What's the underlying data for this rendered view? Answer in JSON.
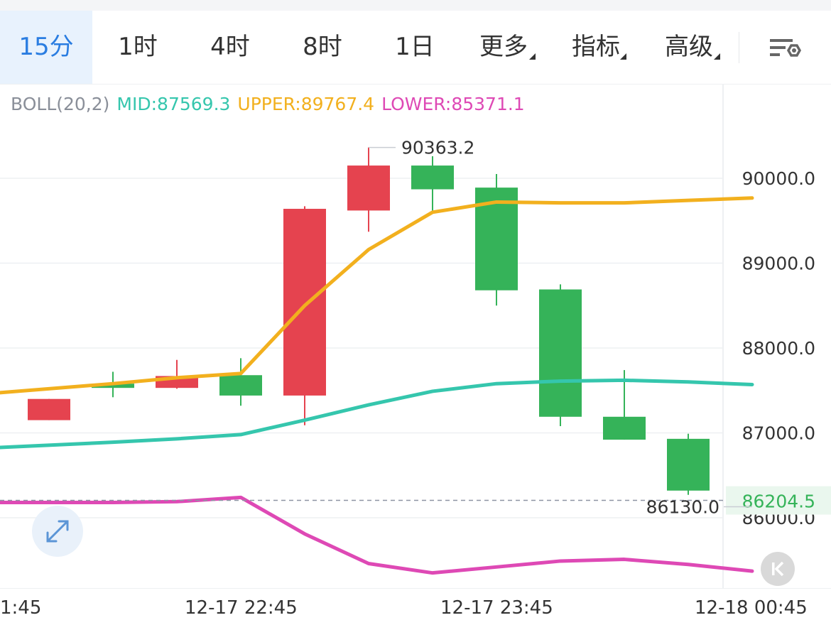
{
  "toolbar": {
    "tabs": [
      {
        "label": "15分",
        "active": true
      },
      {
        "label": "1时",
        "active": false
      },
      {
        "label": "4时",
        "active": false
      },
      {
        "label": "8时",
        "active": false
      },
      {
        "label": "1日",
        "active": false
      },
      {
        "label": "更多",
        "active": false,
        "dropdown": true
      },
      {
        "label": "指标",
        "active": false,
        "dropdown": true
      },
      {
        "label": "高级",
        "active": false,
        "dropdown": true
      }
    ],
    "settings_icon": "chart-settings-icon"
  },
  "indicator": {
    "name": "BOLL(20,2)",
    "mid": "MID:87569.3",
    "upper": "UPPER:89767.4",
    "lower": "LOWER:85371.1"
  },
  "colors": {
    "up": "#e5434f",
    "down": "#35b359",
    "mid": "#35c6ad",
    "upper": "#f2b01e",
    "lower": "#de49b5",
    "active_tab": "#2a7de1",
    "axis_text": "#333333",
    "grid": "#eef0f2",
    "last_price_bg": "#eaf7ee",
    "last_price_text": "#35b359"
  },
  "chart_data": {
    "type": "candlestick",
    "y_axis": {
      "min": 85200,
      "max": 90900,
      "ticks": [
        86000,
        87000,
        88000,
        89000,
        90000
      ],
      "tick_labels": [
        "86000.0",
        "87000.0",
        "88000.0",
        "89000.0",
        "90000.0"
      ],
      "side": "right"
    },
    "x_axis": {
      "tick_labels": [
        "1:45",
        "12-17 22:45",
        "12-17 23:45",
        "12-18 00:45"
      ],
      "tick_index": [
        -3,
        1,
        5,
        9
      ]
    },
    "interval": "15分",
    "candles": [
      {
        "i": -2,
        "open": 87150,
        "close": 87400,
        "high": 87400,
        "low": 87150
      },
      {
        "i": -1,
        "open": 87580,
        "close": 87530,
        "high": 87720,
        "low": 87420
      },
      {
        "i": 0,
        "open": 87530,
        "close": 87670,
        "high": 87860,
        "low": 87520
      },
      {
        "i": 1,
        "open": 87680,
        "close": 87440,
        "high": 87880,
        "low": 87320
      },
      {
        "i": 2,
        "open": 87440,
        "close": 89640,
        "high": 89670,
        "low": 87090
      },
      {
        "i": 3,
        "open": 89620,
        "close": 90150,
        "high": 90363.2,
        "low": 89370
      },
      {
        "i": 4,
        "open": 90150,
        "close": 89870,
        "high": 90260,
        "low": 89620
      },
      {
        "i": 5,
        "open": 89890,
        "close": 88680,
        "high": 90050,
        "low": 88500
      },
      {
        "i": 6,
        "open": 88690,
        "close": 87190,
        "high": 88750,
        "low": 87080
      },
      {
        "i": 7,
        "open": 87190,
        "close": 86920,
        "high": 87740,
        "low": 86920
      },
      {
        "i": 8,
        "open": 86930,
        "close": 86320,
        "high": 86990,
        "low": 86270
      },
      {
        "i": 9,
        "open": 86330,
        "close": 86204.5,
        "high": 86330,
        "low": 86130
      }
    ],
    "boll_upper": [
      [
        -3,
        87460
      ],
      [
        -1,
        87580
      ],
      [
        0,
        87650
      ],
      [
        1,
        87700
      ],
      [
        2,
        88500
      ],
      [
        3,
        89160
      ],
      [
        4,
        89600
      ],
      [
        5,
        89720
      ],
      [
        6,
        89710
      ],
      [
        7,
        89710
      ],
      [
        8,
        89740
      ],
      [
        9,
        89767.4
      ]
    ],
    "boll_mid": [
      [
        -3,
        86820
      ],
      [
        -1,
        86890
      ],
      [
        0,
        86930
      ],
      [
        1,
        86980
      ],
      [
        2,
        87150
      ],
      [
        3,
        87330
      ],
      [
        4,
        87490
      ],
      [
        5,
        87580
      ],
      [
        6,
        87610
      ],
      [
        7,
        87620
      ],
      [
        8,
        87600
      ],
      [
        9,
        87569.3
      ]
    ],
    "boll_lower": [
      [
        -3,
        86180
      ],
      [
        -1,
        86180
      ],
      [
        0,
        86190
      ],
      [
        1,
        86240
      ],
      [
        2,
        85810
      ],
      [
        3,
        85460
      ],
      [
        4,
        85350
      ],
      [
        5,
        85420
      ],
      [
        6,
        85490
      ],
      [
        7,
        85510
      ],
      [
        8,
        85450
      ],
      [
        9,
        85371.1
      ]
    ],
    "max_label": "90363.2",
    "min_label": "86130.0",
    "last_price": 86204.5,
    "last_price_label": "86204.5"
  }
}
